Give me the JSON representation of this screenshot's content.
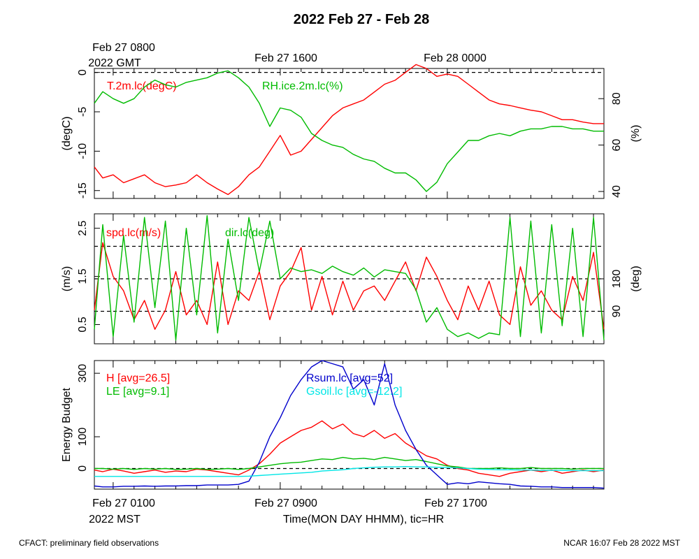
{
  "title": "2022 Feb 27 - Feb 28",
  "top_axis": {
    "labels": [
      "Feb 27 0800",
      "Feb 27 1600",
      "Feb 28 0000"
    ],
    "zone": "2022 GMT"
  },
  "bottom_axis": {
    "labels": [
      "Feb 27 0100",
      "Feb 27 0900",
      "Feb 27 1700"
    ],
    "zone": "2022 MST",
    "xlabel": "Time(MON DAY HHMM), tic=HR"
  },
  "footer": {
    "left": "CFACT: preliminary field observations",
    "right": "NCAR 16:07 Feb 28 2022 MST"
  },
  "colors": {
    "red": "#ff0000",
    "green": "#00bb00",
    "blue": "#0000cc",
    "cyan": "#00e6e6",
    "black": "#000000"
  },
  "chart_data": [
    {
      "type": "line",
      "x_unit": "hours since Feb 27 0000 MST",
      "xlim": [
        0.1,
        24.5
      ],
      "ylabel": "(degC)",
      "ylim": [
        -16,
        0.5
      ],
      "yticks": [
        0,
        -5,
        -10,
        -15
      ],
      "y2label": "(%)",
      "y2lim": [
        37,
        93
      ],
      "y2ticks": [
        40,
        60,
        80
      ],
      "reference_lines": [
        0
      ],
      "series": [
        {
          "name": "T.2m.lc(degC)",
          "color": "#ff0000",
          "axis": "left",
          "x": [
            0.1,
            0.5,
            1,
            1.5,
            2,
            2.5,
            3,
            3.5,
            4,
            4.5,
            5,
            5.5,
            6,
            6.5,
            7,
            7.5,
            8,
            8.5,
            9,
            9.5,
            10,
            10.5,
            11,
            11.5,
            12,
            12.5,
            13,
            13.5,
            14,
            14.5,
            15,
            15.5,
            16,
            16.5,
            17,
            17.5,
            18,
            18.5,
            19,
            19.5,
            20,
            20.5,
            21,
            21.5,
            22,
            22.5,
            23,
            23.5,
            24,
            24.5
          ],
          "values": [
            -12,
            -13.4,
            -13,
            -14,
            -13.5,
            -13,
            -14,
            -14.5,
            -14.3,
            -14,
            -13,
            -14,
            -14.8,
            -15.5,
            -14.5,
            -13,
            -12,
            -10,
            -8,
            -10.5,
            -10,
            -8.5,
            -7,
            -5.5,
            -4.5,
            -4,
            -3.5,
            -2.5,
            -1.5,
            -1,
            0,
            1,
            0.5,
            -0.5,
            -0.2,
            -0.5,
            -1.5,
            -2.5,
            -3.5,
            -4,
            -4.2,
            -4.5,
            -4.8,
            -5,
            -5.5,
            -6,
            -6,
            -6.3,
            -6.5,
            -6.5
          ]
        },
        {
          "name": "RH.ice.2m.lc(%)",
          "color": "#00bb00",
          "axis": "right",
          "x": [
            0.1,
            0.5,
            1,
            1.5,
            2,
            2.5,
            3,
            3.5,
            4,
            4.5,
            5,
            5.5,
            6,
            6.5,
            7,
            7.5,
            8,
            8.5,
            9,
            9.5,
            10,
            10.5,
            11,
            11.5,
            12,
            12.5,
            13,
            13.5,
            14,
            14.5,
            15,
            15.5,
            16,
            16.5,
            17,
            17.5,
            18,
            18.5,
            19,
            19.5,
            20,
            20.5,
            21,
            21.5,
            22,
            22.5,
            23,
            23.5,
            24,
            24.5
          ],
          "values": [
            78,
            83,
            80,
            78,
            80,
            85,
            88,
            86,
            85,
            87,
            88,
            89,
            91,
            92,
            89,
            85,
            78,
            68,
            76,
            75,
            72,
            65,
            62,
            60,
            59,
            56,
            54,
            53,
            50,
            48,
            48,
            45,
            40,
            44,
            52,
            57,
            62,
            62,
            64,
            65,
            64,
            66,
            67,
            67,
            68,
            68,
            67,
            67,
            66,
            66
          ]
        }
      ]
    },
    {
      "type": "line",
      "x_unit": "hours since Feb 27 0000 MST",
      "xlim": [
        0.1,
        24.5
      ],
      "ylabel": "(m/s)",
      "ylim": [
        0.1,
        2.8
      ],
      "yticks": [
        0.5,
        1.5,
        2.5
      ],
      "y2label": "(deg)",
      "y2lim": [
        0,
        360
      ],
      "y2ticks": [
        90,
        180
      ],
      "reference_lines_y2": [
        90,
        180,
        270
      ],
      "series": [
        {
          "name": "spd.lc(m/s)",
          "color": "#ff0000",
          "axis": "left",
          "x": [
            0.1,
            0.5,
            1,
            1.5,
            2,
            2.5,
            3,
            3.5,
            4,
            4.5,
            5,
            5.5,
            6,
            6.5,
            7,
            7.5,
            8,
            8.5,
            9,
            9.5,
            10,
            10.5,
            11,
            11.5,
            12,
            12.5,
            13,
            13.5,
            14,
            14.5,
            15,
            15.5,
            16,
            16.5,
            17,
            17.5,
            18,
            18.5,
            19,
            19.5,
            20,
            20.5,
            21,
            21.5,
            22,
            22.5,
            23,
            23.5,
            24,
            24.5
          ],
          "values": [
            0.8,
            2.2,
            1.5,
            1.2,
            0.6,
            1.0,
            0.4,
            0.8,
            1.6,
            0.7,
            1.0,
            0.5,
            1.8,
            0.5,
            1.2,
            1.0,
            1.6,
            0.6,
            1.3,
            1.6,
            2.1,
            0.8,
            1.5,
            0.7,
            1.4,
            0.8,
            1.2,
            1.3,
            1.0,
            1.4,
            1.8,
            1.2,
            1.9,
            1.5,
            1.0,
            0.6,
            1.3,
            0.8,
            1.4,
            0.7,
            0.5,
            1.7,
            0.9,
            1.2,
            0.8,
            0.6,
            1.5,
            1.0,
            2.0,
            0.4
          ]
        },
        {
          "name": "dir.lc(deg)",
          "color": "#00bb00",
          "axis": "right",
          "x": [
            0.1,
            0.5,
            1,
            1.5,
            2,
            2.5,
            3,
            3.5,
            4,
            4.5,
            5,
            5.5,
            6,
            6.5,
            7,
            7.5,
            8,
            8.5,
            9,
            9.5,
            10,
            10.5,
            11,
            11.5,
            12,
            12.5,
            13,
            13.5,
            14,
            14.5,
            15,
            15.5,
            16,
            16.5,
            17,
            17.5,
            18,
            18.5,
            19,
            19.5,
            20,
            20.5,
            21,
            21.5,
            22,
            22.5,
            23,
            23.5,
            24,
            24.5
          ],
          "values": [
            40,
            330,
            20,
            300,
            60,
            350,
            100,
            340,
            10,
            320,
            80,
            355,
            30,
            290,
            120,
            350,
            200,
            340,
            180,
            210,
            200,
            205,
            195,
            215,
            200,
            190,
            210,
            185,
            205,
            200,
            195,
            150,
            60,
            100,
            40,
            20,
            30,
            15,
            30,
            25,
            350,
            20,
            340,
            30,
            330,
            50,
            320,
            20,
            350,
            10
          ]
        }
      ]
    },
    {
      "type": "line",
      "x_unit": "hours since Feb 27 0000 MST",
      "xlim": [
        0.1,
        24.5
      ],
      "ylabel": "Energy Budget",
      "ylim": [
        -65,
        340
      ],
      "yticks": [
        0,
        100,
        300
      ],
      "reference_lines": [
        0
      ],
      "series": [
        {
          "name": "H [avg=26.5]",
          "color": "#ff0000",
          "x": [
            0.1,
            0.5,
            1,
            1.5,
            2,
            2.5,
            3,
            3.5,
            4,
            4.5,
            5,
            5.5,
            6,
            6.5,
            7,
            7.5,
            8,
            8.5,
            9,
            9.5,
            10,
            10.5,
            11,
            11.5,
            12,
            12.5,
            13,
            13.5,
            14,
            14.5,
            15,
            15.5,
            16,
            16.5,
            17,
            17.5,
            18,
            18.5,
            19,
            19.5,
            20,
            20.5,
            21,
            21.5,
            22,
            22.5,
            23,
            23.5,
            24,
            24.5
          ],
          "values": [
            -5,
            -10,
            -2,
            -8,
            -15,
            -10,
            -5,
            -12,
            -8,
            -10,
            -2,
            -5,
            -10,
            -15,
            -20,
            -5,
            15,
            45,
            80,
            100,
            120,
            130,
            150,
            125,
            140,
            110,
            100,
            120,
            95,
            110,
            80,
            60,
            40,
            30,
            10,
            0,
            -5,
            -15,
            -20,
            -25,
            -15,
            -10,
            -5,
            -10,
            -5,
            -15,
            -10,
            -5,
            -10,
            -5
          ]
        },
        {
          "name": "LE [avg=9.1]",
          "color": "#00bb00",
          "x": [
            0.1,
            0.5,
            1,
            1.5,
            2,
            2.5,
            3,
            3.5,
            4,
            4.5,
            5,
            5.5,
            6,
            6.5,
            7,
            7.5,
            8,
            8.5,
            9,
            9.5,
            10,
            10.5,
            11,
            11.5,
            12,
            12.5,
            13,
            13.5,
            14,
            14.5,
            15,
            15.5,
            16,
            16.5,
            17,
            17.5,
            18,
            18.5,
            19,
            19.5,
            20,
            20.5,
            21,
            21.5,
            22,
            22.5,
            23,
            23.5,
            24,
            24.5
          ],
          "values": [
            0,
            0,
            -2,
            0,
            -3,
            0,
            -2,
            0,
            -3,
            -2,
            0,
            -3,
            -2,
            0,
            -3,
            0,
            5,
            10,
            15,
            18,
            20,
            25,
            30,
            28,
            35,
            30,
            32,
            28,
            35,
            30,
            25,
            28,
            22,
            15,
            8,
            5,
            0,
            0,
            0,
            2,
            0,
            0,
            3,
            0,
            0,
            0,
            -2,
            0,
            0,
            0
          ]
        },
        {
          "name": "Rsum.lc [avg=52]",
          "color": "#0000cc",
          "x": [
            0.1,
            0.5,
            1,
            1.5,
            2,
            2.5,
            3,
            3.5,
            4,
            4.5,
            5,
            5.5,
            6,
            6.5,
            7,
            7.5,
            8,
            8.5,
            9,
            9.5,
            10,
            10.5,
            11,
            11.5,
            12,
            12.5,
            13,
            13.5,
            14,
            14.5,
            15,
            15.5,
            16,
            16.5,
            17,
            17.5,
            18,
            18.5,
            19,
            19.5,
            20,
            20.5,
            21,
            21.5,
            22,
            22.5,
            23,
            23.5,
            24,
            24.5
          ],
          "values": [
            -55,
            -58,
            -58,
            -56,
            -56,
            -55,
            -56,
            -55,
            -55,
            -54,
            -54,
            -52,
            -52,
            -52,
            -50,
            -40,
            20,
            100,
            160,
            230,
            280,
            320,
            340,
            330,
            320,
            250,
            280,
            200,
            330,
            200,
            120,
            60,
            10,
            -20,
            -50,
            -45,
            -48,
            -42,
            -45,
            -48,
            -50,
            -55,
            -56,
            -58,
            -58,
            -60,
            -60,
            -60,
            -60,
            -62
          ]
        },
        {
          "name": "Gsoil.lc [avg=-12.2]",
          "color": "#00e6e6",
          "x": [
            0.1,
            0.5,
            1,
            1.5,
            2,
            2.5,
            3,
            3.5,
            4,
            4.5,
            5,
            5.5,
            6,
            6.5,
            7,
            7.5,
            8,
            8.5,
            9,
            9.5,
            10,
            10.5,
            11,
            11.5,
            12,
            12.5,
            13,
            13.5,
            14,
            14.5,
            15,
            15.5,
            16,
            16.5,
            17,
            17.5,
            18,
            18.5,
            19,
            19.5,
            20,
            20.5,
            21,
            21.5,
            22,
            22.5,
            23,
            23.5,
            24,
            24.5
          ],
          "values": [
            -25,
            -25,
            -25,
            -25,
            -25,
            -25,
            -25,
            -25,
            -25,
            -25,
            -25,
            -25,
            -25,
            -25,
            -25,
            -24,
            -22,
            -20,
            -18,
            -16,
            -14,
            -12,
            -8,
            -6,
            -4,
            0,
            2,
            4,
            5,
            5,
            6,
            5,
            5,
            4,
            3,
            2,
            0,
            -2,
            -3,
            -4,
            -4,
            -5,
            -5,
            -6,
            -6,
            -6,
            -7,
            -7,
            -7,
            -7
          ]
        }
      ]
    }
  ]
}
